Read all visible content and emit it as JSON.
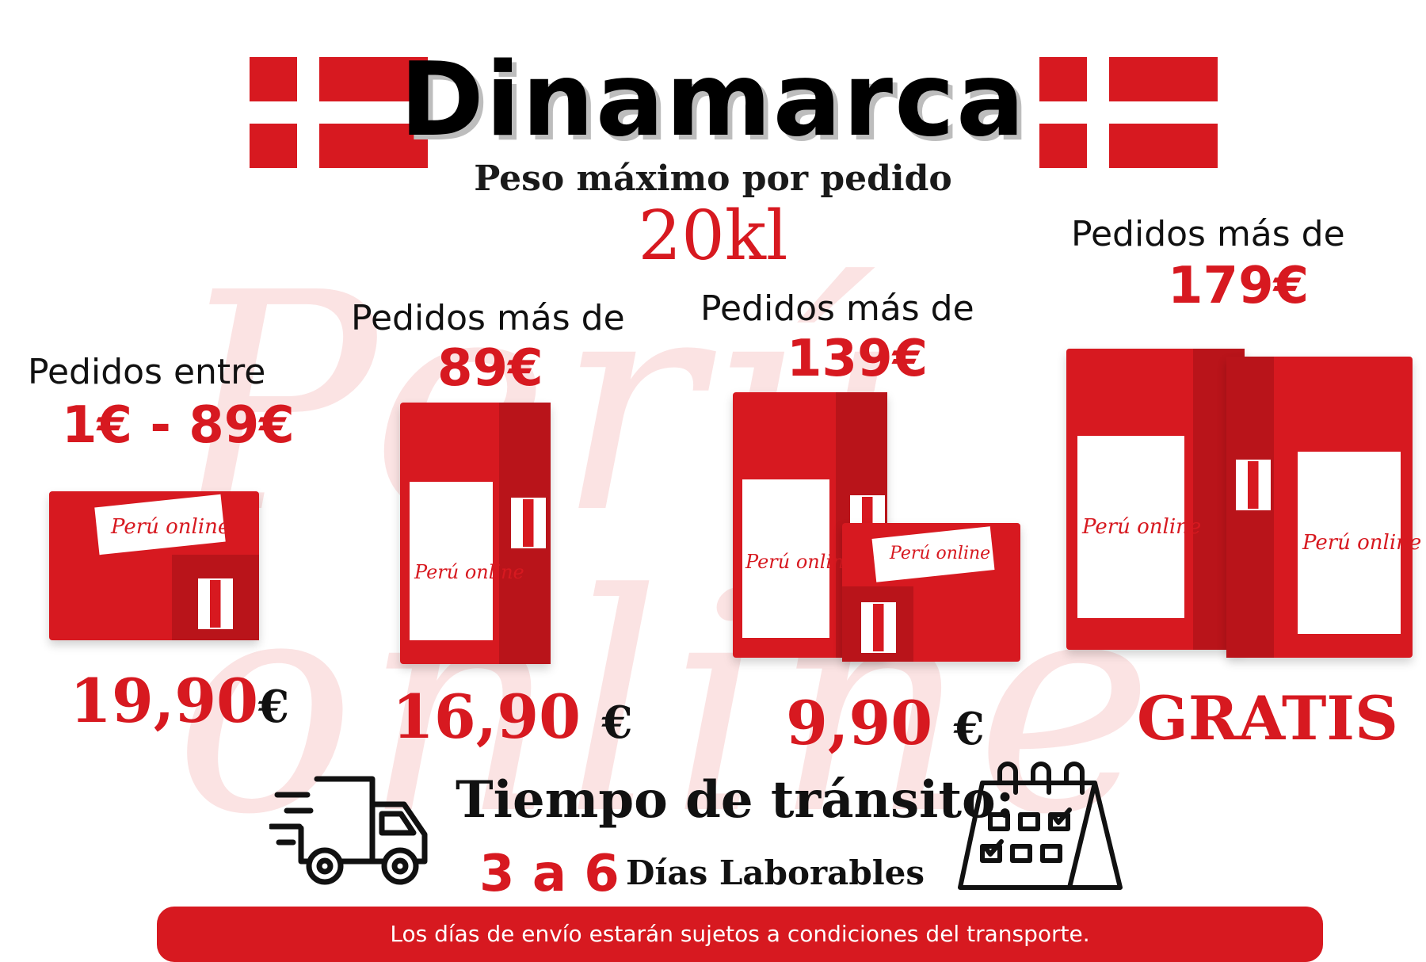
{
  "title": "Dinamarca",
  "subtitle": "Peso máximo por pedido",
  "max_weight": "20kl",
  "watermark": "Perú online",
  "tiers": [
    {
      "label": "Pedidos entre",
      "threshold": "1€ - 89€",
      "price": "19,90",
      "currency": "€"
    },
    {
      "label": "Pedidos más de",
      "threshold": "89€",
      "price": "16,90",
      "currency": "€"
    },
    {
      "label": "Pedidos más de",
      "threshold": "139€",
      "price": "9,90",
      "currency": "€"
    },
    {
      "label": "Pedidos más de",
      "threshold": "179€",
      "price": "GRATIS",
      "currency": ""
    }
  ],
  "box_brand": "Perú online",
  "transit": {
    "title": "Tiempo de tránsito:",
    "days_range": "3 a 6",
    "days_text": "Días Laborables"
  },
  "footer": "Los días de envío estarán sujetos a condiciones del transporte.",
  "colors": {
    "accent": "#d71920",
    "text": "#111111",
    "background": "#ffffff"
  },
  "icons": [
    "delivery-truck-icon",
    "calendar-icon"
  ]
}
